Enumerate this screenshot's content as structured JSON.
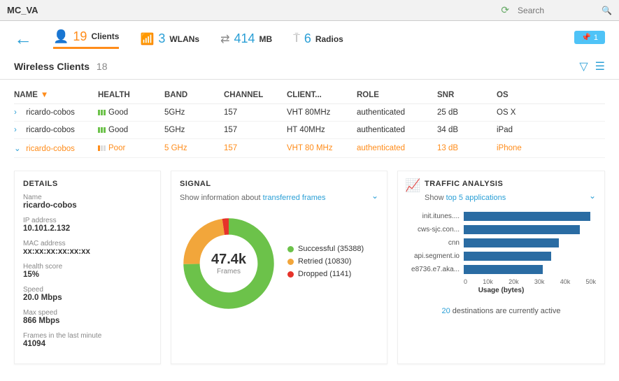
{
  "topbar": {
    "title": "MC_VA",
    "search_placeholder": "Search"
  },
  "stats": {
    "clients": {
      "value": "19",
      "label": "Clients"
    },
    "wlans": {
      "value": "3",
      "label": "WLANs"
    },
    "mb": {
      "value": "414",
      "label": "MB"
    },
    "radios": {
      "value": "6",
      "label": "Radios"
    },
    "pill": "1"
  },
  "section": {
    "title": "Wireless Clients",
    "count": "18"
  },
  "table": {
    "headers": [
      "NAME",
      "HEALTH",
      "BAND",
      "CHANNEL",
      "CLIENT...",
      "ROLE",
      "SNR",
      "OS"
    ],
    "rows": [
      {
        "name": "ricardo-cobos",
        "health": "Good",
        "health_level": "good",
        "band": "5GHz",
        "channel": "157",
        "client": "VHT 80MHz",
        "role": "authenticated",
        "snr": "25 dB",
        "os": "OS X",
        "selected": false
      },
      {
        "name": "ricardo-cobos",
        "health": "Good",
        "health_level": "good",
        "band": "5GHz",
        "channel": "157",
        "client": "HT 40MHz",
        "role": "authenticated",
        "snr": "34 dB",
        "os": "iPad",
        "selected": false
      },
      {
        "name": "ricardo-cobos",
        "health": "Poor",
        "health_level": "poor",
        "band": "5 GHz",
        "channel": "157",
        "client": "VHT 80 MHz",
        "role": "authenticated",
        "snr": "13 dB",
        "os": "iPhone",
        "selected": true
      }
    ]
  },
  "details": {
    "title": "DETAILS",
    "items": [
      {
        "label": "Name",
        "value": "ricardo-cobos"
      },
      {
        "label": "IP address",
        "value": "10.101.2.132"
      },
      {
        "label": "MAC address",
        "value": "xx:xx:xx:xx:xx:xx"
      },
      {
        "label": "Health score",
        "value": "15%"
      },
      {
        "label": "Speed",
        "value": "20.0 Mbps"
      },
      {
        "label": "Max speed",
        "value": "866 Mbps"
      },
      {
        "label": "Frames in the last minute",
        "value": "41094"
      }
    ]
  },
  "signal": {
    "title": "SIGNAL",
    "subtext_prefix": "Show information about ",
    "subtext_link": "transferred frames",
    "center_value": "47.4k",
    "center_label": "Frames",
    "colors": {
      "successful": "#6cc24a",
      "retried": "#f2a63b",
      "dropped": "#e6332a"
    },
    "series": [
      {
        "key": "successful",
        "label": "Successful (35388)",
        "value": 35388
      },
      {
        "key": "retried",
        "label": "Retried (10830)",
        "value": 10830
      },
      {
        "key": "dropped",
        "label": "Dropped (1141)",
        "value": 1141
      }
    ]
  },
  "traffic": {
    "title": "TRAFFIC ANALYSIS",
    "subtext_prefix": "Show ",
    "subtext_link": "top 5 applications",
    "bar_color": "#2a6ca3",
    "max": 50000,
    "ticks": [
      "0",
      "10k",
      "20k",
      "30k",
      "40k",
      "50k"
    ],
    "axis_label": "Usage (bytes)",
    "bars": [
      {
        "label": "init.itunes....",
        "value": 48000
      },
      {
        "label": "cws-sjc.con...",
        "value": 44000
      },
      {
        "label": "cnn",
        "value": 36000
      },
      {
        "label": "api.segment.io",
        "value": 33000
      },
      {
        "label": "e8736.e7.aka...",
        "value": 30000
      }
    ],
    "footer_count": "20",
    "footer_text": " destinations are currently active"
  }
}
